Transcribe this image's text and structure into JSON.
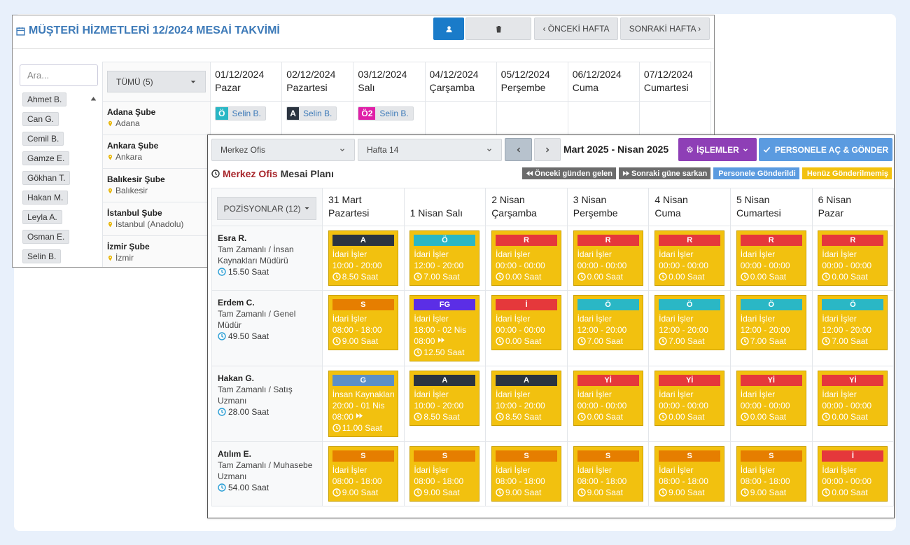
{
  "back": {
    "title": "MÜŞTERİ HİZMETLERİ 12/2024 MESAİ TAKVİMİ",
    "prev_week": "‹ ÖNCEKİ HAFTA",
    "next_week": "SONRAKİ HAFTA ›",
    "search_placeholder": "Ara...",
    "people": [
      "Ahmet B.",
      "Can G.",
      "Cemil B.",
      "Gamze E.",
      "Gökhan T.",
      "Hakan M.",
      "Leyla A.",
      "Osman E.",
      "Selin B."
    ],
    "filter": "TÜMÜ (5)",
    "days": [
      {
        "date": "01/12/2024",
        "name": "Pazar"
      },
      {
        "date": "02/12/2024",
        "name": "Pazartesi"
      },
      {
        "date": "03/12/2024",
        "name": "Salı"
      },
      {
        "date": "04/12/2024",
        "name": "Çarşamba"
      },
      {
        "date": "05/12/2024",
        "name": "Perşembe"
      },
      {
        "date": "06/12/2024",
        "name": "Cuma"
      },
      {
        "date": "07/12/2024",
        "name": "Cumartesi"
      }
    ],
    "branches": [
      {
        "name": "Adana Şube",
        "city": "Adana",
        "shifts": [
          {
            "code": "Ö",
            "color": "#2ab7c5",
            "person": "Selin B."
          },
          {
            "code": "A",
            "color": "#2b3440",
            "person": "Selin B."
          },
          {
            "code": "Ö2",
            "color": "#e020a8",
            "person": "Selin B."
          },
          null,
          null,
          null,
          null
        ]
      },
      {
        "name": "Ankara Şube",
        "city": "Ankara"
      },
      {
        "name": "Balıkesir Şube",
        "city": "Balıkesir"
      },
      {
        "name": "İstanbul Şube",
        "city": "İstanbul (Anadolu)"
      },
      {
        "name": "İzmir Şube",
        "city": "İzmir"
      }
    ]
  },
  "front": {
    "office": "Merkez Ofis",
    "week": "Hafta 14",
    "range": "Mart 2025 - Nisan 2025",
    "actions": "İŞLEMLER",
    "send": "PERSONELE AÇ & GÖNDER",
    "plan_office": "Merkez Ofis",
    "plan_title": "Mesai Planı",
    "legend": [
      {
        "label": "Önceki günden gelen",
        "color": "#6b6b6b"
      },
      {
        "label": "Sonraki güne sarkan",
        "color": "#6b6b6b"
      },
      {
        "label": "Personele Gönderildi",
        "color": "#5b9be0"
      },
      {
        "label": "Henüz Gönderilmemiş",
        "color": "#f2c10f"
      }
    ],
    "positions": "POZİSYONLAR (12)",
    "days": [
      "31 Mart Pazartesi",
      "1 Nisan Salı",
      "2 Nisan Çarşamba",
      "3 Nisan Perşembe",
      "4 Nisan Cuma",
      "5 Nisan Cumartesi",
      "6 Nisan Pazar"
    ],
    "employees": [
      {
        "name": "Esra R.",
        "role": "Tam Zamanlı / İnsan Kaynakları Müdürü",
        "hours": "15.50 Saat",
        "shifts": [
          {
            "code": "A",
            "color": "#2b3440",
            "dept": "İdari İşler",
            "time": "10:00 - 20:00",
            "duration": "8.50 Saat"
          },
          {
            "code": "Ö",
            "color": "#2ab7c5",
            "dept": "İdari İşler",
            "time": "12:00 - 20:00",
            "duration": "7.00 Saat"
          },
          {
            "code": "R",
            "color": "#e5383b",
            "dept": "İdari İşler",
            "time": "00:00 - 00:00",
            "duration": "0.00 Saat"
          },
          {
            "code": "R",
            "color": "#e5383b",
            "dept": "İdari İşler",
            "time": "00:00 - 00:00",
            "duration": "0.00 Saat"
          },
          {
            "code": "R",
            "color": "#e5383b",
            "dept": "İdari İşler",
            "time": "00:00 - 00:00",
            "duration": "0.00 Saat"
          },
          {
            "code": "R",
            "color": "#e5383b",
            "dept": "İdari İşler",
            "time": "00:00 - 00:00",
            "duration": "0.00 Saat"
          },
          {
            "code": "R",
            "color": "#e5383b",
            "dept": "İdari İşler",
            "time": "00:00 - 00:00",
            "duration": "0.00 Saat"
          }
        ]
      },
      {
        "name": "Erdem C.",
        "role": "Tam Zamanlı / Genel Müdür",
        "hours": "49.50 Saat",
        "shifts": [
          {
            "code": "S",
            "color": "#e67e00",
            "dept": "İdari İşler",
            "time": "08:00 - 18:00",
            "duration": "9.00 Saat"
          },
          {
            "code": "FG",
            "color": "#5b2ee6",
            "dept": "İdari İşler",
            "time": "18:00 - 02 Nis 08:00",
            "next_day": true,
            "duration": "12.50 Saat"
          },
          {
            "code": "İ",
            "color": "#e5383b",
            "dept": "İdari İşler",
            "time": "00:00 - 00:00",
            "duration": "0.00 Saat"
          },
          {
            "code": "Ö",
            "color": "#2ab7c5",
            "dept": "İdari İşler",
            "time": "12:00 - 20:00",
            "duration": "7.00 Saat"
          },
          {
            "code": "Ö",
            "color": "#2ab7c5",
            "dept": "İdari İşler",
            "time": "12:00 - 20:00",
            "duration": "7.00 Saat"
          },
          {
            "code": "Ö",
            "color": "#2ab7c5",
            "dept": "İdari İşler",
            "time": "12:00 - 20:00",
            "duration": "7.00 Saat"
          },
          {
            "code": "Ö",
            "color": "#2ab7c5",
            "dept": "İdari İşler",
            "time": "12:00 - 20:00",
            "duration": "7.00 Saat"
          }
        ]
      },
      {
        "name": "Hakan G.",
        "role": "Tam Zamanlı / Satış Uzmanı",
        "hours": "28.00 Saat",
        "shifts": [
          {
            "code": "G",
            "color": "#5b8fc7",
            "dept": "İnsan Kaynakları",
            "time": "20:00 - 01 Nis 08:00",
            "next_day": true,
            "duration": "11.00 Saat"
          },
          {
            "code": "A",
            "color": "#2b3440",
            "dept": "İdari İşler",
            "time": "10:00 - 20:00",
            "duration": "8.50 Saat"
          },
          {
            "code": "A",
            "color": "#2b3440",
            "dept": "İdari İşler",
            "time": "10:00 - 20:00",
            "duration": "8.50 Saat"
          },
          {
            "code": "Yİ",
            "color": "#e5383b",
            "dept": "İdari İşler",
            "time": "00:00 - 00:00",
            "duration": "0.00 Saat"
          },
          {
            "code": "Yİ",
            "color": "#e5383b",
            "dept": "İdari İşler",
            "time": "00:00 - 00:00",
            "duration": "0.00 Saat"
          },
          {
            "code": "Yİ",
            "color": "#e5383b",
            "dept": "İdari İşler",
            "time": "00:00 - 00:00",
            "duration": "0.00 Saat"
          },
          {
            "code": "Yİ",
            "color": "#e5383b",
            "dept": "İdari İşler",
            "time": "00:00 - 00:00",
            "duration": "0.00 Saat"
          }
        ]
      },
      {
        "name": "Atılım E.",
        "role": "Tam Zamanlı / Muhasebe Uzmanı",
        "hours": "54.00 Saat",
        "shifts": [
          {
            "code": "S",
            "color": "#e67e00",
            "dept": "İdari İşler",
            "time": "08:00 - 18:00",
            "duration": "9.00 Saat"
          },
          {
            "code": "S",
            "color": "#e67e00",
            "dept": "İdari İşler",
            "time": "08:00 - 18:00",
            "duration": "9.00 Saat"
          },
          {
            "code": "S",
            "color": "#e67e00",
            "dept": "İdari İşler",
            "time": "08:00 - 18:00",
            "duration": "9.00 Saat"
          },
          {
            "code": "S",
            "color": "#e67e00",
            "dept": "İdari İşler",
            "time": "08:00 - 18:00",
            "duration": "9.00 Saat"
          },
          {
            "code": "S",
            "color": "#e67e00",
            "dept": "İdari İşler",
            "time": "08:00 - 18:00",
            "duration": "9.00 Saat"
          },
          {
            "code": "S",
            "color": "#e67e00",
            "dept": "İdari İşler",
            "time": "08:00 - 18:00",
            "duration": "9.00 Saat"
          },
          {
            "code": "İ",
            "color": "#e5383b",
            "dept": "İdari İşler",
            "time": "00:00 - 00:00",
            "duration": "0.00 Saat"
          }
        ]
      }
    ]
  }
}
